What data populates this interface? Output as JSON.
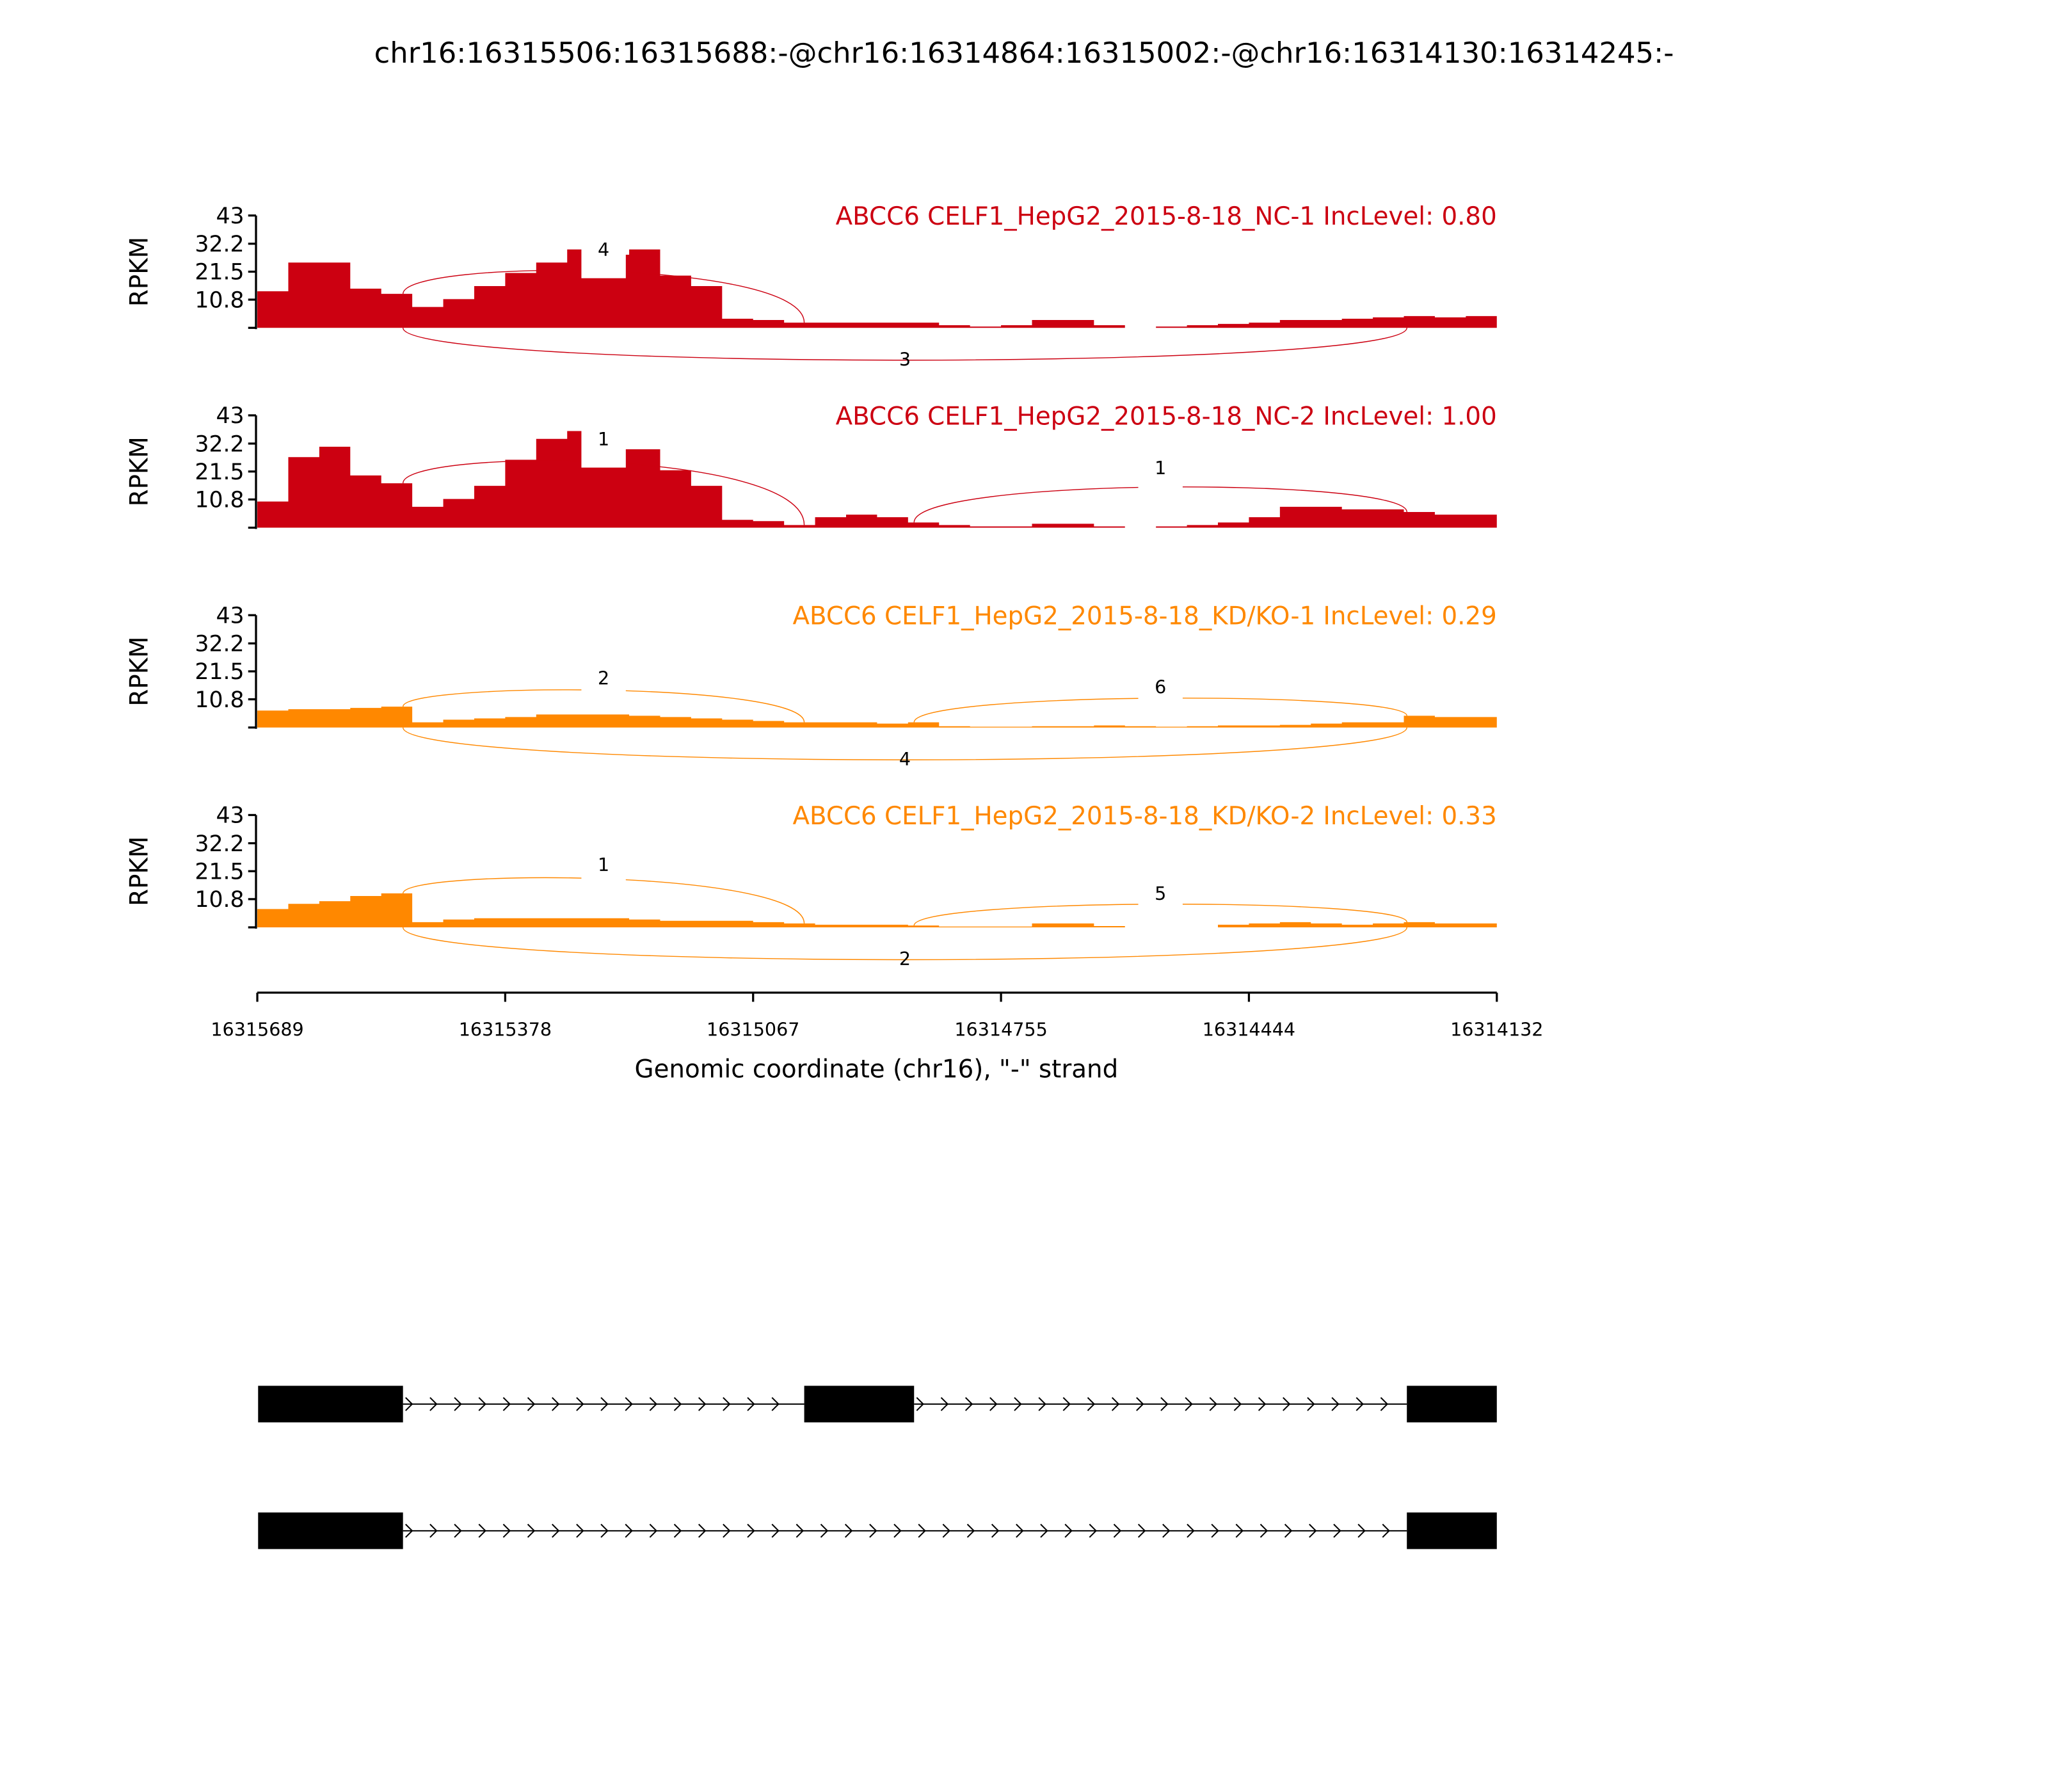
{
  "chart_data": {
    "type": "area",
    "title": "chr16:16315506:16315688:-@chr16:16314864:16315002:-@chr16:16314130:16314245:-",
    "xlabel": "Genomic coordinate (chr16), \"-\" strand",
    "ylabel": "RPKM",
    "xlim": [
      16315689,
      16314132
    ],
    "xticks": [
      "16315689",
      "16315378",
      "16315067",
      "16314755",
      "16314444",
      "16314132"
    ],
    "xtick_values": [
      16315689,
      16315378,
      16315067,
      16314755,
      16314444,
      16314132
    ],
    "ylim": [
      0,
      43
    ],
    "yticks": [
      "43",
      "32.2",
      "21.5",
      "10.8"
    ],
    "ytick_values": [
      43,
      32.2,
      21.5,
      10.8,
      0
    ],
    "coverage_bins": {
      "start": 16315689,
      "end": 16314132,
      "count": 40
    },
    "series": [
      {
        "name": "ABCC6 CELF1_HepG2_2015-8-18_NC-1 IncLevel: 0.80",
        "color": "#cc0011",
        "values": [
          14,
          25,
          25,
          15,
          13,
          8,
          11,
          16,
          21,
          25,
          30,
          28,
          30,
          20,
          16,
          3.5,
          3,
          2,
          2,
          2,
          2,
          2,
          1,
          0.5,
          1,
          3,
          3,
          1,
          0,
          0.5,
          1,
          1.5,
          2,
          3,
          3,
          3.5,
          4,
          4.5,
          4,
          4.5
        ],
        "junctions": [
          {
            "from": 16315506,
            "to": 16315002,
            "count": "4",
            "side": "above"
          },
          {
            "from": 16315506,
            "to": 16314245,
            "count": "3",
            "side": "below"
          }
        ]
      },
      {
        "name": "ABCC6 CELF1_HepG2_2015-8-18_NC-2 IncLevel: 1.00",
        "color": "#cc0011",
        "values": [
          10,
          27,
          31,
          20,
          17,
          8,
          11,
          16,
          26,
          34,
          37,
          30,
          30,
          22,
          16,
          3,
          2.5,
          1,
          4,
          5,
          4,
          2,
          1,
          0.5,
          0.5,
          1.5,
          1.5,
          0.5,
          0,
          0.5,
          1,
          2,
          4,
          8,
          8,
          7,
          7,
          6,
          5,
          5
        ],
        "junctions": [
          {
            "from": 16315506,
            "to": 16315002,
            "count": "1",
            "side": "above"
          },
          {
            "from": 16314864,
            "to": 16314245,
            "count": "1",
            "side": "above"
          }
        ]
      },
      {
        "name": "ABCC6 CELF1_HepG2_2015-8-18_KD/KO-1 IncLevel: 0.29",
        "color": "#ff8800",
        "values": [
          6.5,
          7,
          7,
          7.5,
          8,
          2,
          3,
          3.5,
          4,
          5,
          5,
          5,
          4.5,
          4,
          3.5,
          3,
          2.5,
          2,
          2,
          2,
          1.5,
          2,
          0.5,
          0.3,
          0.3,
          0.5,
          0.5,
          0.8,
          0.5,
          0.3,
          0.5,
          0.8,
          0.8,
          1,
          1.5,
          2,
          2,
          4.5,
          4,
          4
        ],
        "junctions": [
          {
            "from": 16315506,
            "to": 16315002,
            "count": "2",
            "side": "above"
          },
          {
            "from": 16315506,
            "to": 16314245,
            "count": "4",
            "side": "below"
          },
          {
            "from": 16314864,
            "to": 16314245,
            "count": "6",
            "side": "above"
          }
        ]
      },
      {
        "name": "ABCC6 CELF1_HepG2_2015-8-18_KD/KO-2 IncLevel: 0.33",
        "color": "#ff8800",
        "values": [
          7,
          9,
          10,
          12,
          13,
          2,
          3,
          3.5,
          3.5,
          3.5,
          3.5,
          3.5,
          3,
          2.5,
          2.5,
          2.5,
          2,
          1.5,
          1,
          1,
          1,
          0.7,
          0.3,
          0.3,
          0.3,
          1.5,
          1.5,
          0.5,
          0,
          0,
          0,
          1,
          1.5,
          2,
          1.5,
          1,
          1.5,
          2,
          1.5,
          1.5
        ],
        "junctions": [
          {
            "from": 16315506,
            "to": 16315002,
            "count": "1",
            "side": "above"
          },
          {
            "from": 16315506,
            "to": 16314245,
            "count": "2",
            "side": "below"
          },
          {
            "from": 16314864,
            "to": 16314245,
            "count": "5",
            "side": "above"
          }
        ]
      }
    ],
    "transcripts": [
      {
        "exons": [
          [
            16315688,
            16315506
          ],
          [
            16315002,
            16314864
          ],
          [
            16314245,
            16314132
          ]
        ]
      },
      {
        "exons": [
          [
            16315688,
            16315506
          ],
          [
            16314245,
            16314132
          ]
        ]
      }
    ]
  }
}
